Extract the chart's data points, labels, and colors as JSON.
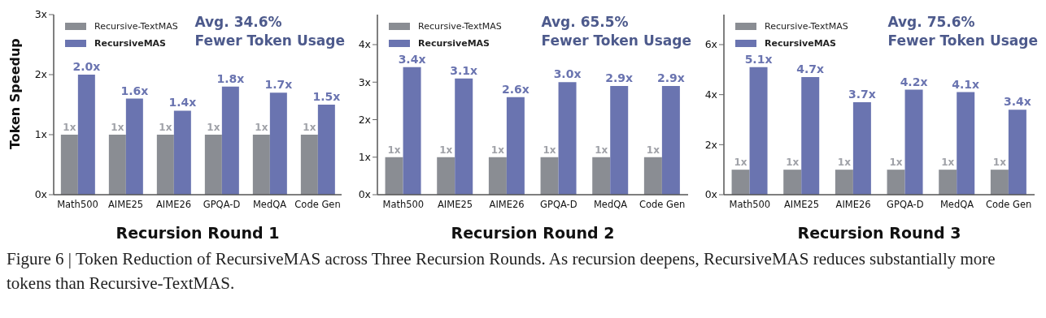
{
  "chart_data": [
    {
      "type": "bar",
      "xlabel": "Recursion Round 1",
      "ylabel": "Token Speedup",
      "categories": [
        "Math500",
        "AIME25",
        "AIME26",
        "GPQA-D",
        "MedQA",
        "Code Gen"
      ],
      "series": [
        {
          "name": "Recursive-TextMAS",
          "color": "#8a8d93",
          "values": [
            1,
            1,
            1,
            1,
            1,
            1
          ],
          "value_labels": [
            "1x",
            "1x",
            "1x",
            "1x",
            "1x",
            "1x"
          ]
        },
        {
          "name": "RecursiveMAS",
          "color": "#6a74b0",
          "values": [
            2.0,
            1.6,
            1.4,
            1.8,
            1.7,
            1.5
          ],
          "value_labels": [
            "2.0x",
            "1.6x",
            "1.4x",
            "1.8x",
            "1.7x",
            "1.5x"
          ]
        }
      ],
      "ylim": [
        0,
        3
      ],
      "yticks": [
        {
          "value": 0,
          "label": "0x"
        },
        {
          "value": 1,
          "label": "1x"
        },
        {
          "value": 2,
          "label": "2x"
        },
        {
          "value": 3,
          "label": "3x"
        }
      ],
      "legend": "top left",
      "annotations": [
        "Avg. 34.6%",
        "Fewer Token Usage"
      ]
    },
    {
      "type": "bar",
      "xlabel": "Recursion Round 2",
      "categories": [
        "Math500",
        "AIME25",
        "AIME26",
        "GPQA-D",
        "MedQA",
        "Code Gen"
      ],
      "series": [
        {
          "name": "Recursive-TextMAS",
          "color": "#8a8d93",
          "values": [
            1,
            1,
            1,
            1,
            1,
            1
          ],
          "value_labels": [
            "1x",
            "1x",
            "1x",
            "1x",
            "1x",
            "1x"
          ]
        },
        {
          "name": "RecursiveMAS",
          "color": "#6a74b0",
          "values": [
            3.4,
            3.1,
            2.6,
            3.0,
            2.9,
            2.9
          ],
          "value_labels": [
            "3.4x",
            "3.1x",
            "2.6x",
            "3.0x",
            "2.9x",
            "2.9x"
          ]
        }
      ],
      "ylim": [
        0,
        4.8
      ],
      "yticks": [
        {
          "value": 0,
          "label": "0x"
        },
        {
          "value": 1,
          "label": "1x"
        },
        {
          "value": 2,
          "label": "2x"
        },
        {
          "value": 3,
          "label": "3x"
        },
        {
          "value": 4,
          "label": "4x"
        }
      ],
      "legend": "top left",
      "annotations": [
        "Avg. 65.5%",
        "Fewer Token Usage"
      ]
    },
    {
      "type": "bar",
      "xlabel": "Recursion Round 3",
      "categories": [
        "Math500",
        "AIME25",
        "AIME26",
        "GPQA-D",
        "MedQA",
        "Code Gen"
      ],
      "series": [
        {
          "name": "Recursive-TextMAS",
          "color": "#8a8d93",
          "values": [
            1,
            1,
            1,
            1,
            1,
            1
          ],
          "value_labels": [
            "1x",
            "1x",
            "1x",
            "1x",
            "1x",
            "1x"
          ]
        },
        {
          "name": "RecursiveMAS",
          "color": "#6a74b0",
          "values": [
            5.1,
            4.7,
            3.7,
            4.2,
            4.1,
            3.4
          ],
          "value_labels": [
            "5.1x",
            "4.7x",
            "3.7x",
            "4.2x",
            "4.1x",
            "3.4x"
          ]
        }
      ],
      "ylim": [
        0,
        7.2
      ],
      "yticks": [
        {
          "value": 0,
          "label": "0x"
        },
        {
          "value": 2,
          "label": "2x"
        },
        {
          "value": 4,
          "label": "4x"
        },
        {
          "value": 6,
          "label": "6x"
        }
      ],
      "legend": "top left",
      "annotations": [
        "Avg. 75.6%",
        "Fewer Token Usage",
        "Figure 6 | Token Reduction of RecursiveMAS across Three Recursion Rounds. As recursion deepens, RecursiveMAS reduces substantially more tokens than Recursive-TextMAS."
      ]
    }
  ]
}
